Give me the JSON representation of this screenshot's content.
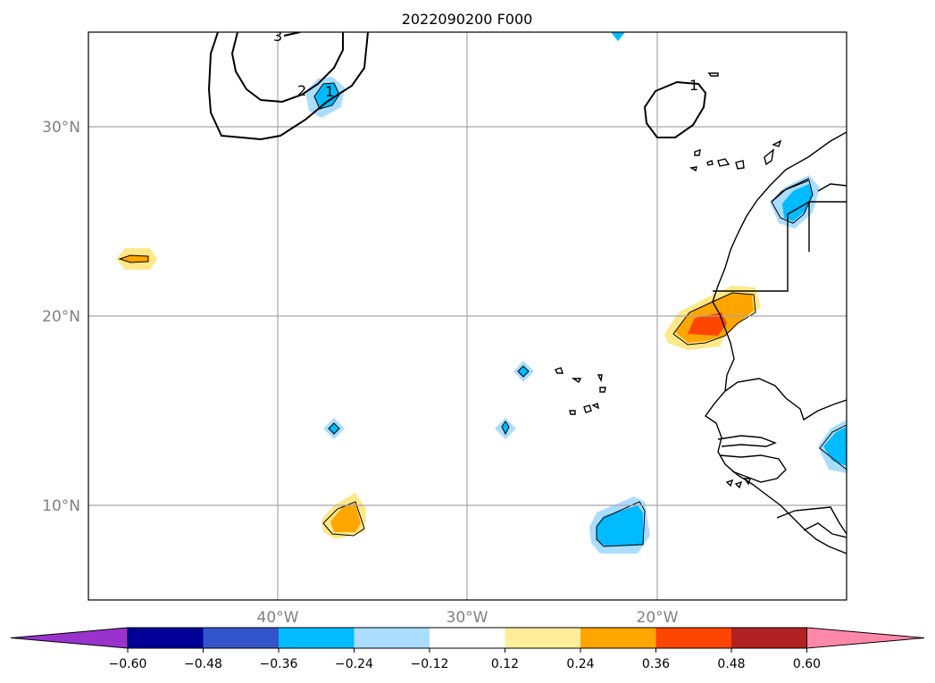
{
  "title": "2022090200 F000",
  "map": {
    "lat_labels": [
      "30°N",
      "20°N",
      "10°N"
    ],
    "lon_labels": [
      "40°W",
      "30°W",
      "20°W"
    ],
    "contour_labels": [
      "3",
      "2",
      "1",
      "1"
    ]
  },
  "colorbar": {
    "ticks": [
      "−0.60",
      "−0.48",
      "−0.36",
      "−0.24",
      "−0.12",
      "0.12",
      "0.24",
      "0.36",
      "0.48",
      "0.60"
    ],
    "colors": [
      "#9933cc",
      "#000099",
      "#3355cc",
      "#00bbff",
      "#aaddff",
      "#ffffff",
      "#ffee99",
      "#ffa500",
      "#ff4500",
      "#b22222",
      "#ff88aa"
    ]
  },
  "fill_colors": {
    "light_blue": "#aaddff",
    "blue": "#00bbff",
    "light_yellow": "#ffe888",
    "orange": "#ffa500",
    "red_orange": "#ff4500"
  }
}
